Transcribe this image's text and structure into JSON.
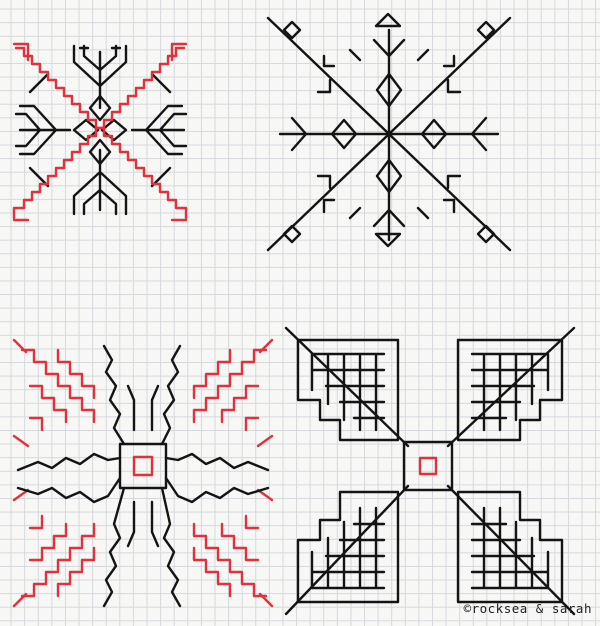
{
  "credit": "©rocksea & sarah",
  "colors": {
    "paper": "#f7f7f5",
    "grid": "#d4d8dc",
    "ink": "#141414",
    "accent": "#e0313c"
  },
  "motifs": [
    {
      "name": "motif-top-left",
      "style": "black-red-diagonal-cross"
    },
    {
      "name": "motif-top-right",
      "style": "black-diamond-star"
    },
    {
      "name": "motif-bottom-left",
      "style": "red-black-flower"
    },
    {
      "name": "motif-bottom-right",
      "style": "black-four-petal-with-red-center"
    }
  ]
}
